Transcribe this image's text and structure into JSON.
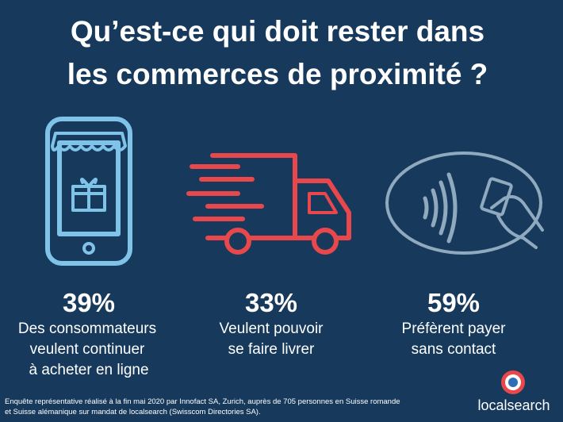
{
  "title": [
    "Qu’est-ce qui doit rester dans",
    "les commerces de proximité ?"
  ],
  "stats": [
    {
      "value": "39%",
      "text": [
        "Des consommateurs",
        "veulent continuer",
        "à acheter en ligne"
      ]
    },
    {
      "value": "33%",
      "text": [
        "Veulent pouvoir",
        "se faire livrer"
      ]
    },
    {
      "value": "59%",
      "text": [
        "Préfèrent payer",
        "sans contact"
      ]
    }
  ],
  "footnote": [
    "Enquête représentative réalisé à la fin mai 2020 par Innofact SA, Zurich, auprès de 705 personnes en Suisse romande",
    "et Suisse alémanique sur mandat de localsearch (Swisscom Directories SA)."
  ],
  "logo": "localsearch"
}
